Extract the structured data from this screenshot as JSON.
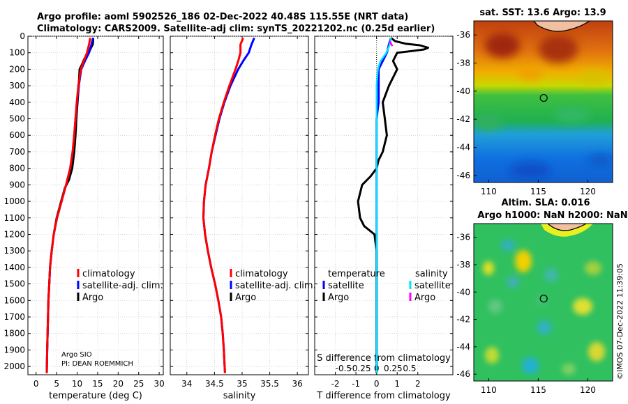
{
  "title_line1": "Argo profile: aoml 5902526_186 02-Dec-2022 40.48S 115.55E (NRT data)",
  "title_line2": "Climatology: CARS2009. Satellite-adj clim: synTS_20221202.nc (0.25d earlier)",
  "sst_title": "sat. SST: 13.6 Argo: 13.9",
  "sla_title1": "Altim. SLA: 0.016",
  "sla_title2": "Argo h1000: NaN h2000: NaN",
  "credit_line1": "Argo SIO",
  "credit_line2": "PI: DEAN ROEMMICH",
  "timestamp": "©IMOS 07-Dec-2022 11:39:05",
  "colors": {
    "climatology": "#ff0000",
    "satellite_adj": "#0000ff",
    "argo": "#000000",
    "s_satellite": "#00e5ff",
    "s_argo": "#ff00ff"
  },
  "legend_profiles": [
    "climatology",
    "satellite-adj. clim.",
    "Argo"
  ],
  "legend_diff": {
    "temperature_header": "temperature",
    "salinity_header": "salinity",
    "temperature_items": [
      "satellite",
      "Argo"
    ],
    "salinity_items": [
      "satellite",
      "Argo"
    ]
  },
  "chart_data": [
    {
      "type": "line",
      "xlabel": "temperature (deg C)",
      "ylabel": "",
      "xlim": [
        -2,
        31
      ],
      "ylim": [
        2050,
        0
      ],
      "x_ticks": [
        0,
        5,
        10,
        15,
        20,
        25,
        30
      ],
      "y_ticks": [
        0,
        100,
        200,
        300,
        400,
        500,
        600,
        700,
        800,
        900,
        1000,
        1100,
        1200,
        1300,
        1400,
        1500,
        1600,
        1700,
        1800,
        1900,
        2000
      ],
      "series": [
        {
          "name": "climatology",
          "x": [
            13.2,
            12.9,
            12.4,
            11.6,
            10.9,
            10.3,
            9.9,
            9.6,
            9.3,
            8.9,
            8.3,
            7.3,
            6.2,
            5.1,
            4.3,
            3.8,
            3.4,
            3.2,
            3.0,
            2.9,
            2.8,
            2.7,
            2.6
          ],
          "y": [
            10,
            50,
            100,
            150,
            200,
            300,
            400,
            500,
            600,
            700,
            800,
            900,
            1000,
            1100,
            1200,
            1300,
            1400,
            1500,
            1600,
            1700,
            1800,
            1900,
            2040
          ]
        },
        {
          "name": "satellite-adj. clim.",
          "x": [
            13.9,
            13.5,
            12.9,
            11.9,
            11.0,
            10.4,
            10.0,
            9.6,
            9.3,
            8.9,
            8.3,
            7.3,
            6.2,
            5.1,
            4.3,
            3.8,
            3.4,
            3.2,
            3.0,
            2.9,
            2.8,
            2.7,
            2.6
          ],
          "y": [
            10,
            50,
            100,
            150,
            200,
            300,
            400,
            500,
            600,
            700,
            800,
            900,
            1000,
            1100,
            1200,
            1300,
            1400,
            1500,
            1600,
            1700,
            1800,
            1900,
            2040
          ]
        },
        {
          "name": "Argo",
          "x": [
            13.9,
            13.9,
            13.8,
            13.4,
            13.0,
            12.4,
            11.7,
            11.2,
            10.6,
            10.4,
            10.1,
            9.8,
            9.6,
            9.3,
            8.8,
            8.0,
            7.0,
            6.1,
            5.0,
            4.3,
            3.8,
            3.4,
            3.2,
            3.0,
            2.9,
            2.8,
            2.7,
            2.6
          ],
          "y": [
            10,
            30,
            50,
            70,
            90,
            110,
            140,
            170,
            200,
            300,
            400,
            500,
            600,
            700,
            800,
            870,
            920,
            1000,
            1100,
            1200,
            1300,
            1400,
            1500,
            1600,
            1700,
            1800,
            1900,
            2040
          ]
        }
      ]
    },
    {
      "type": "line",
      "xlabel": "salinity",
      "ylabel": "",
      "xlim": [
        33.7,
        36.2
      ],
      "ylim": [
        2050,
        0
      ],
      "x_ticks": [
        34,
        34.5,
        35,
        35.5,
        36
      ],
      "x_tick_labels": [
        "34",
        "34.5",
        "35",
        "35.5",
        "36"
      ],
      "series": [
        {
          "name": "climatology",
          "x": [
            35.02,
            34.97,
            34.97,
            34.93,
            34.88,
            34.77,
            34.67,
            34.58,
            34.51,
            34.45,
            34.4,
            34.34,
            34.31,
            34.3,
            34.33,
            34.38,
            34.44,
            34.51,
            34.57,
            34.62,
            34.65,
            34.67,
            34.69
          ],
          "y": [
            10,
            50,
            100,
            150,
            200,
            300,
            400,
            500,
            600,
            700,
            800,
            900,
            1000,
            1100,
            1200,
            1300,
            1400,
            1500,
            1600,
            1700,
            1800,
            1900,
            2040
          ]
        },
        {
          "name": "satellite-adj. clim.",
          "x": [
            35.22,
            35.17,
            35.12,
            35.02,
            34.93,
            34.79,
            34.68,
            34.59,
            34.52,
            34.45,
            34.4,
            34.34,
            34.31,
            34.3,
            34.33,
            34.38,
            34.44,
            34.51,
            34.57,
            34.62,
            34.65,
            34.67,
            34.69
          ],
          "y": [
            10,
            50,
            100,
            150,
            200,
            300,
            400,
            500,
            600,
            700,
            800,
            900,
            1000,
            1100,
            1200,
            1300,
            1400,
            1500,
            1600,
            1700,
            1800,
            1900,
            2040
          ]
        }
      ]
    },
    {
      "type": "line",
      "xlabel": "T difference from climatology",
      "xlabel_top": "S difference from climatology",
      "ylabel": "",
      "xlim": [
        -3.0,
        3.7
      ],
      "ylim": [
        2050,
        0
      ],
      "x_ticks": [
        -2,
        -1,
        0,
        1,
        2
      ],
      "s_ticks": [
        -0.5,
        -0.25,
        0,
        0.25,
        0.5
      ],
      "s_tick_labels": [
        "-0.5",
        "-0.25",
        "0",
        "0.25",
        "0.5"
      ],
      "series": [
        {
          "name": "satellite",
          "variable": "temperature",
          "x": [
            0.7,
            0.6,
            0.5,
            0.3,
            0.1,
            0.1,
            0.1,
            0.0,
            0.0,
            0.0,
            0.0,
            0.0,
            0.0,
            0.0,
            0.0,
            0.0,
            0.0,
            0.0,
            0.0,
            0.0,
            0.0,
            0.0,
            0.0
          ],
          "y": [
            10,
            50,
            100,
            150,
            200,
            300,
            400,
            500,
            600,
            700,
            800,
            900,
            1000,
            1100,
            1200,
            1300,
            1400,
            1500,
            1600,
            1700,
            1800,
            1900,
            2040
          ]
        },
        {
          "name": "Argo",
          "variable": "temperature",
          "x": [
            0.7,
            0.9,
            1.4,
            2.1,
            2.5,
            2.3,
            1.7,
            1.0,
            0.8,
            1.0,
            0.6,
            0.3,
            0.4,
            0.5,
            0.3,
            0.1,
            0.0,
            -0.3,
            -0.7,
            -0.9,
            -0.8,
            -0.6,
            -0.1,
            0.0,
            0.0,
            0.0,
            0.0
          ],
          "y": [
            10,
            30,
            45,
            55,
            70,
            80,
            90,
            100,
            150,
            200,
            300,
            400,
            500,
            600,
            700,
            750,
            800,
            850,
            900,
            1000,
            1100,
            1150,
            1200,
            1300,
            1600,
            1900,
            2040
          ]
        },
        {
          "name": "satellite",
          "variable": "salinity",
          "x": [
            0.22,
            0.2,
            0.15,
            0.06,
            0.02,
            0.0,
            0.0,
            0.0,
            0.0
          ],
          "y": [
            10,
            50,
            100,
            150,
            200,
            300,
            600,
            1000,
            2040
          ]
        },
        {
          "name": "Argo",
          "variable": "salinity",
          "x": [
            0.2,
            0.24
          ],
          "y": [
            30,
            60
          ]
        }
      ]
    },
    {
      "type": "heatmap",
      "title": "sat. SST: 13.6 Argo: 13.9",
      "xlim": [
        108.5,
        122.5
      ],
      "ylim": [
        -46.5,
        -35
      ],
      "x_ticks": [
        110,
        115,
        120
      ],
      "y_ticks": [
        -36,
        -38,
        -40,
        -42,
        -44,
        -46
      ],
      "marker": {
        "lon": 115.55,
        "lat": -40.48
      }
    },
    {
      "type": "heatmap",
      "title": "Altim. SLA: 0.016",
      "xlim": [
        108.5,
        122.5
      ],
      "ylim": [
        -46.5,
        -35
      ],
      "x_ticks": [
        110,
        115,
        120
      ],
      "y_ticks": [
        -36,
        -38,
        -40,
        -42,
        -44,
        -46
      ],
      "marker": {
        "lon": 115.55,
        "lat": -40.48
      }
    }
  ]
}
